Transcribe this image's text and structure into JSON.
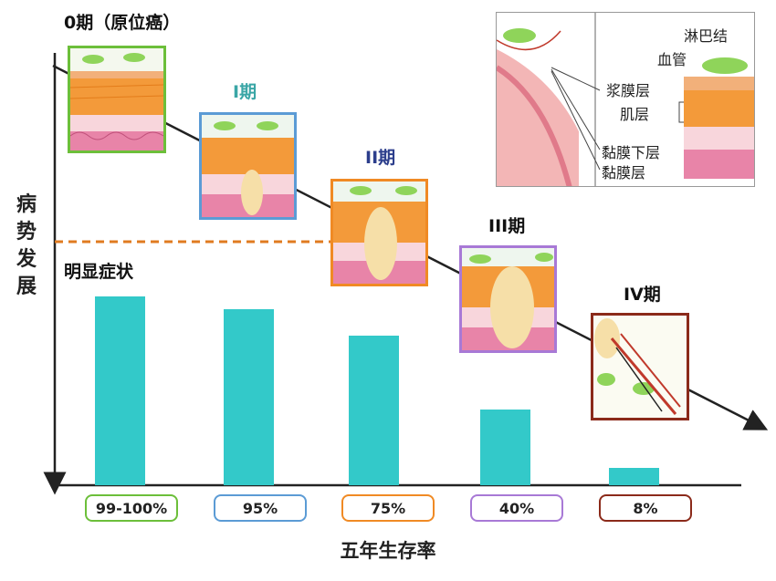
{
  "chart_data": {
    "type": "bar",
    "categories": [
      "0期（原位癌）",
      "I期",
      "II期",
      "III期",
      "IV期"
    ],
    "values": [
      99.5,
      95,
      75,
      40,
      8
    ],
    "value_labels": [
      "99-100%",
      "95%",
      "75%",
      "40%",
      "8%"
    ],
    "xlabel": "五年生存率",
    "ylabel": "病势发展",
    "ylim": [
      0,
      100
    ],
    "grid": false,
    "bar_color": "#33c9c9"
  },
  "stages": [
    {
      "label": "0期（原位癌）",
      "color": "#6cbf3a",
      "label_color": "#111111"
    },
    {
      "label": "I期",
      "color": "#5b9bd5",
      "label_color": "#3aa6a6"
    },
    {
      "label": "II期",
      "color": "#f08a24",
      "label_color": "#2c3e8c"
    },
    {
      "label": "III期",
      "color": "#a879d6",
      "label_color": "#111111"
    },
    {
      "label": "IV期",
      "color": "#8b2a1a",
      "label_color": "#111111"
    }
  ],
  "symptom_label": "明显症状",
  "symptom_line_color": "#e07b20",
  "inset": {
    "labels": [
      "淋巴结",
      "血管",
      "浆膜层",
      "肌层",
      "黏膜下层",
      "黏膜层"
    ]
  }
}
